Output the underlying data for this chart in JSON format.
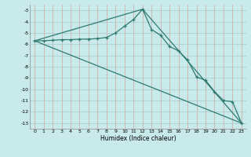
{
  "xlabel": "Humidex (Indice chaleur)",
  "background_color": "#c8eaea",
  "grid_color_x": "#d4a0a0",
  "grid_color_y": "#a8c8c8",
  "line_color": "#2d7a6e",
  "xlim": [
    -0.5,
    23.5
  ],
  "ylim": [
    -13.5,
    -2.5
  ],
  "yticks": [
    -13,
    -12,
    -11,
    -10,
    -9,
    -8,
    -7,
    -6,
    -5,
    -4,
    -3
  ],
  "xticks": [
    0,
    1,
    2,
    3,
    4,
    5,
    6,
    7,
    8,
    9,
    10,
    11,
    12,
    13,
    14,
    15,
    16,
    17,
    18,
    19,
    20,
    21,
    22,
    23
  ],
  "line1_x": [
    0,
    1,
    2,
    3,
    4,
    5,
    6,
    7,
    8,
    9,
    10,
    11,
    12,
    13,
    14,
    15,
    16,
    17,
    18,
    19,
    20,
    21,
    22,
    23
  ],
  "line1_y": [
    -5.7,
    -5.7,
    -5.65,
    -5.6,
    -5.6,
    -5.55,
    -5.55,
    -5.5,
    -5.4,
    -5.0,
    -4.4,
    -3.8,
    -2.9,
    -4.7,
    -5.2,
    -6.2,
    -6.6,
    -7.4,
    -8.9,
    -9.2,
    -10.2,
    -11.0,
    -11.1,
    -13.0
  ],
  "line2_x": [
    0,
    23
  ],
  "line2_y": [
    -5.7,
    -13.0
  ],
  "line3_x": [
    0,
    12,
    23
  ],
  "line3_y": [
    -5.7,
    -2.9,
    -13.0
  ]
}
